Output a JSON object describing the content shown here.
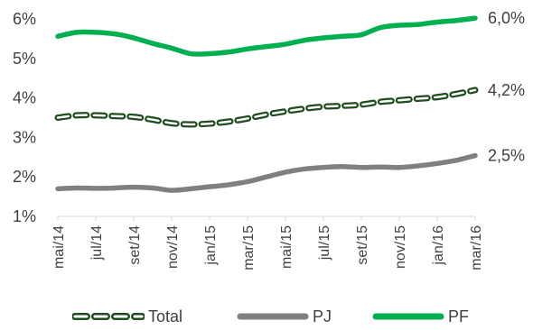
{
  "chart_data": {
    "type": "line",
    "categories": [
      "mai/14",
      "jun/14",
      "jul/14",
      "ago/14",
      "set/14",
      "out/14",
      "nov/14",
      "dez/14",
      "jan/15",
      "fev/15",
      "mar/15",
      "abr/15",
      "mai/15",
      "jun/15",
      "jul/15",
      "ago/15",
      "set/15",
      "out/15",
      "nov/15",
      "dez/15",
      "jan/16",
      "fev/16",
      "mar/16"
    ],
    "x_tick_labels": [
      "mai/14",
      "jul/14",
      "set/14",
      "nov/14",
      "jan/15",
      "mar/15",
      "mai/15",
      "jul/15",
      "set/15",
      "nov/15",
      "jan/16",
      "mar/16"
    ],
    "y_tick_labels": [
      "1%",
      "2%",
      "3%",
      "4%",
      "5%",
      "6%"
    ],
    "ylim": [
      1,
      6
    ],
    "y_ticks": [
      1,
      2,
      3,
      4,
      5,
      6
    ],
    "grid": false,
    "legend_position": "bottom",
    "series": [
      {
        "name": "Total",
        "color": "#1e4d1e",
        "fill": "#ffffff",
        "style": "dashed",
        "values": [
          3.5,
          3.56,
          3.56,
          3.54,
          3.52,
          3.45,
          3.36,
          3.33,
          3.35,
          3.4,
          3.48,
          3.58,
          3.66,
          3.73,
          3.78,
          3.8,
          3.83,
          3.9,
          3.94,
          3.98,
          4.02,
          4.1,
          4.2
        ],
        "end_label": "4,2%"
      },
      {
        "name": "PJ",
        "color": "#808080",
        "style": "solid",
        "values": [
          1.7,
          1.72,
          1.71,
          1.72,
          1.74,
          1.72,
          1.66,
          1.7,
          1.75,
          1.8,
          1.88,
          2.0,
          2.12,
          2.2,
          2.24,
          2.26,
          2.24,
          2.25,
          2.24,
          2.28,
          2.34,
          2.42,
          2.54
        ],
        "end_label": "2,5%"
      },
      {
        "name": "PF",
        "color": "#00b050",
        "style": "solid",
        "values": [
          5.56,
          5.66,
          5.66,
          5.62,
          5.52,
          5.38,
          5.26,
          5.12,
          5.12,
          5.16,
          5.24,
          5.3,
          5.36,
          5.46,
          5.52,
          5.56,
          5.6,
          5.78,
          5.84,
          5.86,
          5.92,
          5.96,
          6.02
        ],
        "end_label": "6,0%"
      }
    ]
  }
}
